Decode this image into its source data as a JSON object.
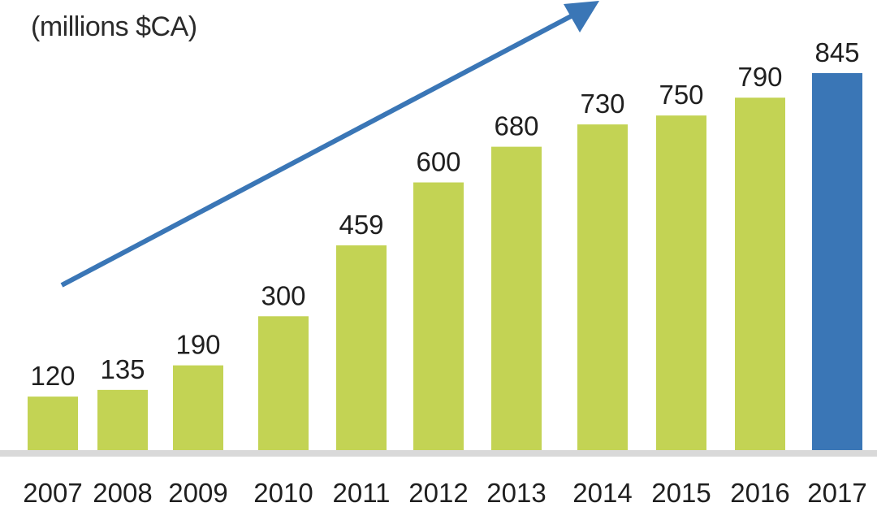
{
  "chart_data": {
    "type": "bar",
    "unit_label": "(millions $CA)",
    "title": "",
    "xlabel": "",
    "ylabel": "",
    "categories": [
      "2007",
      "2008",
      "2009",
      "2010",
      "2011",
      "2012",
      "2013",
      "2014",
      "2015",
      "2016",
      "2017"
    ],
    "values": [
      120,
      135,
      190,
      300,
      459,
      600,
      680,
      730,
      750,
      790,
      845
    ],
    "data_labels": [
      "120",
      "135",
      "190",
      "300",
      "459",
      "600",
      "680",
      "730",
      "750",
      "790",
      "845"
    ],
    "ylim": [
      0,
      845
    ],
    "grid": false,
    "legend": "none",
    "colors": {
      "bar": "#c3d354",
      "highlight_bar": "#3a76b6",
      "arrow": "#3a76b6",
      "baseline": "#d9d9d9"
    },
    "highlight_index": 10,
    "trend_arrow": true
  }
}
